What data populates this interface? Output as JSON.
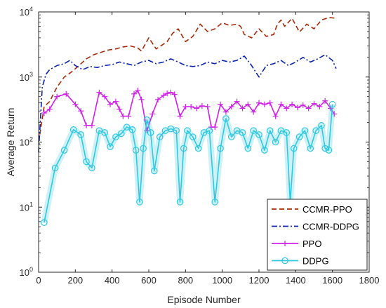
{
  "chart_data": {
    "type": "line",
    "xlabel": "Episode Number",
    "ylabel": "Average Return",
    "xlim": [
      0,
      1800
    ],
    "ylim": [
      1,
      10000
    ],
    "yscale": "log",
    "xticks": [
      0,
      200,
      400,
      600,
      800,
      1000,
      1200,
      1400,
      1600,
      1800
    ],
    "xtick_labels": [
      "0",
      "200",
      "400",
      "600",
      "800",
      "1000",
      "1200",
      "1400",
      "1600",
      "1800"
    ],
    "yticks": [
      1,
      10,
      100,
      1000,
      10000
    ],
    "ytick_labels": [
      {
        "base": "10",
        "exp": "0"
      },
      {
        "base": "10",
        "exp": "1"
      },
      {
        "base": "10",
        "exp": "2"
      },
      {
        "base": "10",
        "exp": "3"
      },
      {
        "base": "10",
        "exp": "4"
      }
    ],
    "grid": false,
    "legend_position": "bottom-right",
    "series": [
      {
        "name": "CCMR-PPO",
        "color": "#a52a0a",
        "style": "dashed",
        "x": [
          0,
          30,
          60,
          100,
          140,
          180,
          220,
          260,
          300,
          340,
          380,
          420,
          460,
          500,
          540,
          560,
          600,
          640,
          680,
          700,
          730,
          760,
          800,
          840,
          880,
          920,
          960,
          1000,
          1040,
          1080,
          1100,
          1120,
          1160,
          1200,
          1240,
          1280,
          1300,
          1320,
          1340,
          1380,
          1420,
          1460,
          1500,
          1540,
          1580,
          1620
        ],
        "values": [
          100,
          350,
          420,
          700,
          1000,
          1200,
          1500,
          1900,
          2200,
          2400,
          2600,
          2700,
          2900,
          3000,
          2800,
          2500,
          4000,
          2700,
          3200,
          3500,
          4700,
          5500,
          3500,
          4200,
          6500,
          5000,
          5500,
          6800,
          6200,
          6500,
          6000,
          4500,
          4000,
          5500,
          4200,
          4500,
          6500,
          7500,
          6000,
          8000,
          4900,
          6500,
          5500,
          7500,
          8200,
          8000
        ]
      },
      {
        "name": "CCMR-DDPG",
        "color": "#0a22b0",
        "style": "dashdot",
        "x": [
          0,
          20,
          40,
          60,
          100,
          140,
          170,
          200,
          240,
          280,
          320,
          360,
          400,
          440,
          480,
          520,
          560,
          600,
          640,
          680,
          720,
          760,
          800,
          840,
          880,
          920,
          960,
          1000,
          1040,
          1080,
          1120,
          1160,
          1200,
          1240,
          1280,
          1320,
          1360,
          1400,
          1440,
          1480,
          1520,
          1560,
          1600,
          1620
        ],
        "values": [
          70,
          700,
          1100,
          1300,
          1500,
          1600,
          1800,
          1500,
          1300,
          1450,
          1400,
          1500,
          1550,
          1700,
          1600,
          1500,
          1700,
          1800,
          1600,
          1700,
          1900,
          1700,
          1500,
          1450,
          1500,
          1700,
          1600,
          1800,
          1700,
          1800,
          2100,
          1500,
          1000,
          1500,
          1600,
          1800,
          1500,
          1700,
          2000,
          1700,
          1900,
          2200,
          1800,
          1350
        ]
      },
      {
        "name": "PPO",
        "color": "#d020e8",
        "style": "solid",
        "marker": "plus",
        "x": [
          30,
          60,
          100,
          150,
          200,
          230,
          260,
          290,
          330,
          360,
          390,
          420,
          440,
          460,
          490,
          520,
          540,
          560,
          590,
          620,
          650,
          680,
          700,
          720,
          740,
          770,
          800,
          830,
          860,
          890,
          920,
          940,
          960,
          990,
          1020,
          1050,
          1080,
          1110,
          1140,
          1170,
          1200,
          1230,
          1260,
          1290,
          1320,
          1350,
          1380,
          1410,
          1440,
          1470,
          1500,
          1530,
          1560,
          1590,
          1610
        ],
        "values": [
          280,
          320,
          500,
          550,
          380,
          300,
          180,
          180,
          580,
          500,
          380,
          420,
          320,
          250,
          250,
          550,
          620,
          450,
          150,
          270,
          450,
          520,
          560,
          580,
          540,
          250,
          350,
          350,
          330,
          360,
          350,
          170,
          170,
          380,
          290,
          350,
          420,
          330,
          380,
          290,
          400,
          380,
          400,
          250,
          380,
          330,
          380,
          340,
          370,
          330,
          390,
          350,
          430,
          330,
          270
        ]
      },
      {
        "name": "DDPG",
        "color": "#32c8e0",
        "style": "solid",
        "marker": "circle",
        "x": [
          30,
          90,
          140,
          190,
          230,
          260,
          290,
          330,
          360,
          390,
          420,
          450,
          480,
          510,
          530,
          550,
          570,
          590,
          610,
          630,
          660,
          690,
          720,
          750,
          770,
          790,
          810,
          840,
          870,
          900,
          930,
          960,
          990,
          1020,
          1050,
          1080,
          1110,
          1140,
          1170,
          1200,
          1230,
          1260,
          1290,
          1320,
          1350,
          1370,
          1390,
          1420,
          1450,
          1480,
          1510,
          1540,
          1560,
          1580,
          1600
        ],
        "values": [
          5.8,
          40,
          75,
          155,
          130,
          50,
          40,
          150,
          140,
          85,
          120,
          135,
          170,
          155,
          75,
          12,
          80,
          220,
          140,
          36,
          120,
          150,
          160,
          150,
          12,
          80,
          150,
          120,
          80,
          140,
          150,
          12,
          80,
          230,
          120,
          150,
          140,
          80,
          150,
          130,
          75,
          150,
          100,
          150,
          140,
          12,
          80,
          120,
          150,
          80,
          150,
          180,
          80,
          75,
          380
        ]
      }
    ]
  }
}
